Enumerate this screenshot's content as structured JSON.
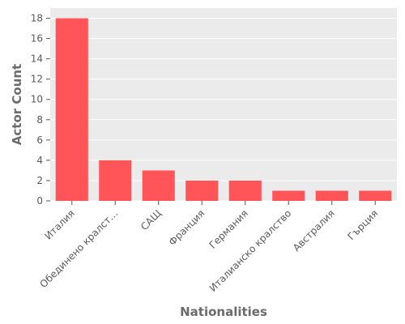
{
  "chart_data": {
    "type": "bar",
    "xlabel": "Nationalities",
    "ylabel": "Actor Count",
    "categories": [
      "Италия",
      "Обединено кралст…",
      "САЩ",
      "Франция",
      "Германия",
      "Италианско кралство",
      "Австралия",
      "Гърция"
    ],
    "values": [
      18,
      4,
      3,
      2,
      2,
      1,
      1,
      1
    ],
    "ylim": [
      0,
      19
    ],
    "yticks": [
      0,
      2,
      4,
      6,
      8,
      10,
      12,
      14,
      16,
      18
    ],
    "grid": true,
    "colors": {
      "bar": "#ff5558",
      "plot_background": "#ebebeb",
      "grid": "#ffffff"
    }
  }
}
